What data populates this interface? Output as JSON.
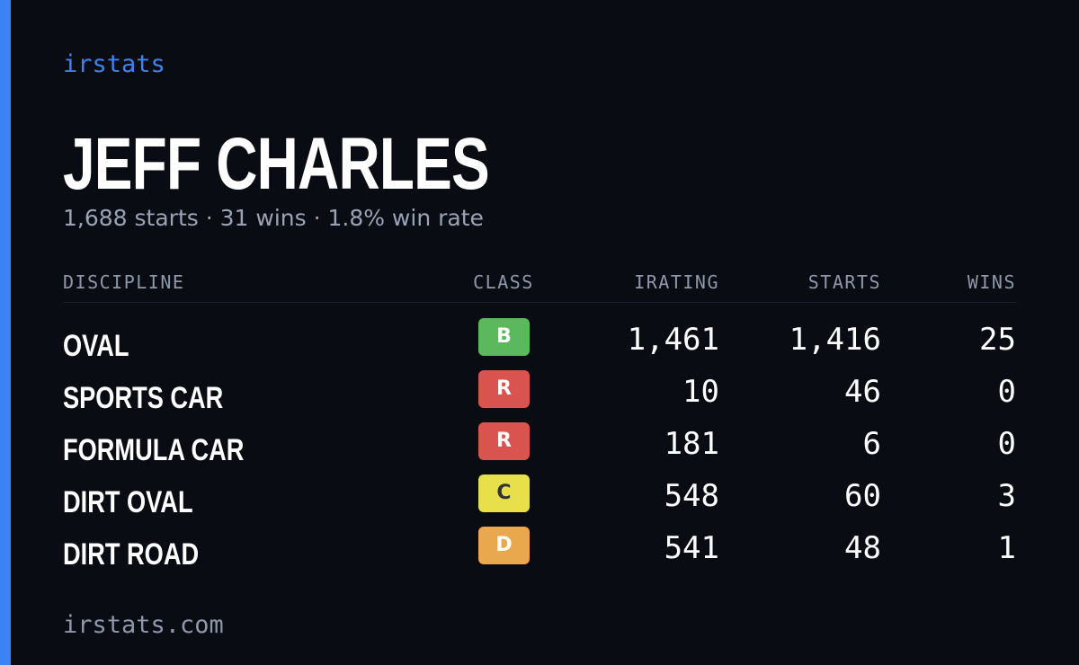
{
  "brand": "irstats",
  "title": "JEFF CHARLES",
  "subtitle": "1,688 starts · 31 wins · 1.8% win rate",
  "table": {
    "headers": [
      "DISCIPLINE",
      "CLASS",
      "IRATING",
      "STARTS",
      "WINS"
    ],
    "rows": [
      {
        "discipline": "OVAL",
        "class": "B",
        "class_color": "#5cb85c",
        "irating": "1,461",
        "starts": "1,416",
        "wins": "25"
      },
      {
        "discipline": "SPORTS CAR",
        "class": "R",
        "class_color": "#d9534f",
        "irating": "10",
        "starts": "46",
        "wins": "0"
      },
      {
        "discipline": "FORMULA CAR",
        "class": "R",
        "class_color": "#d9534f",
        "irating": "181",
        "starts": "6",
        "wins": "0"
      },
      {
        "discipline": "DIRT OVAL",
        "class": "C",
        "class_color": "#e8e04a",
        "irating": "548",
        "starts": "60",
        "wins": "3"
      },
      {
        "discipline": "DIRT ROAD",
        "class": "D",
        "class_color": "#eaa84e",
        "irating": "541",
        "starts": "48",
        "wins": "1"
      }
    ]
  },
  "footer": "irstats.com"
}
